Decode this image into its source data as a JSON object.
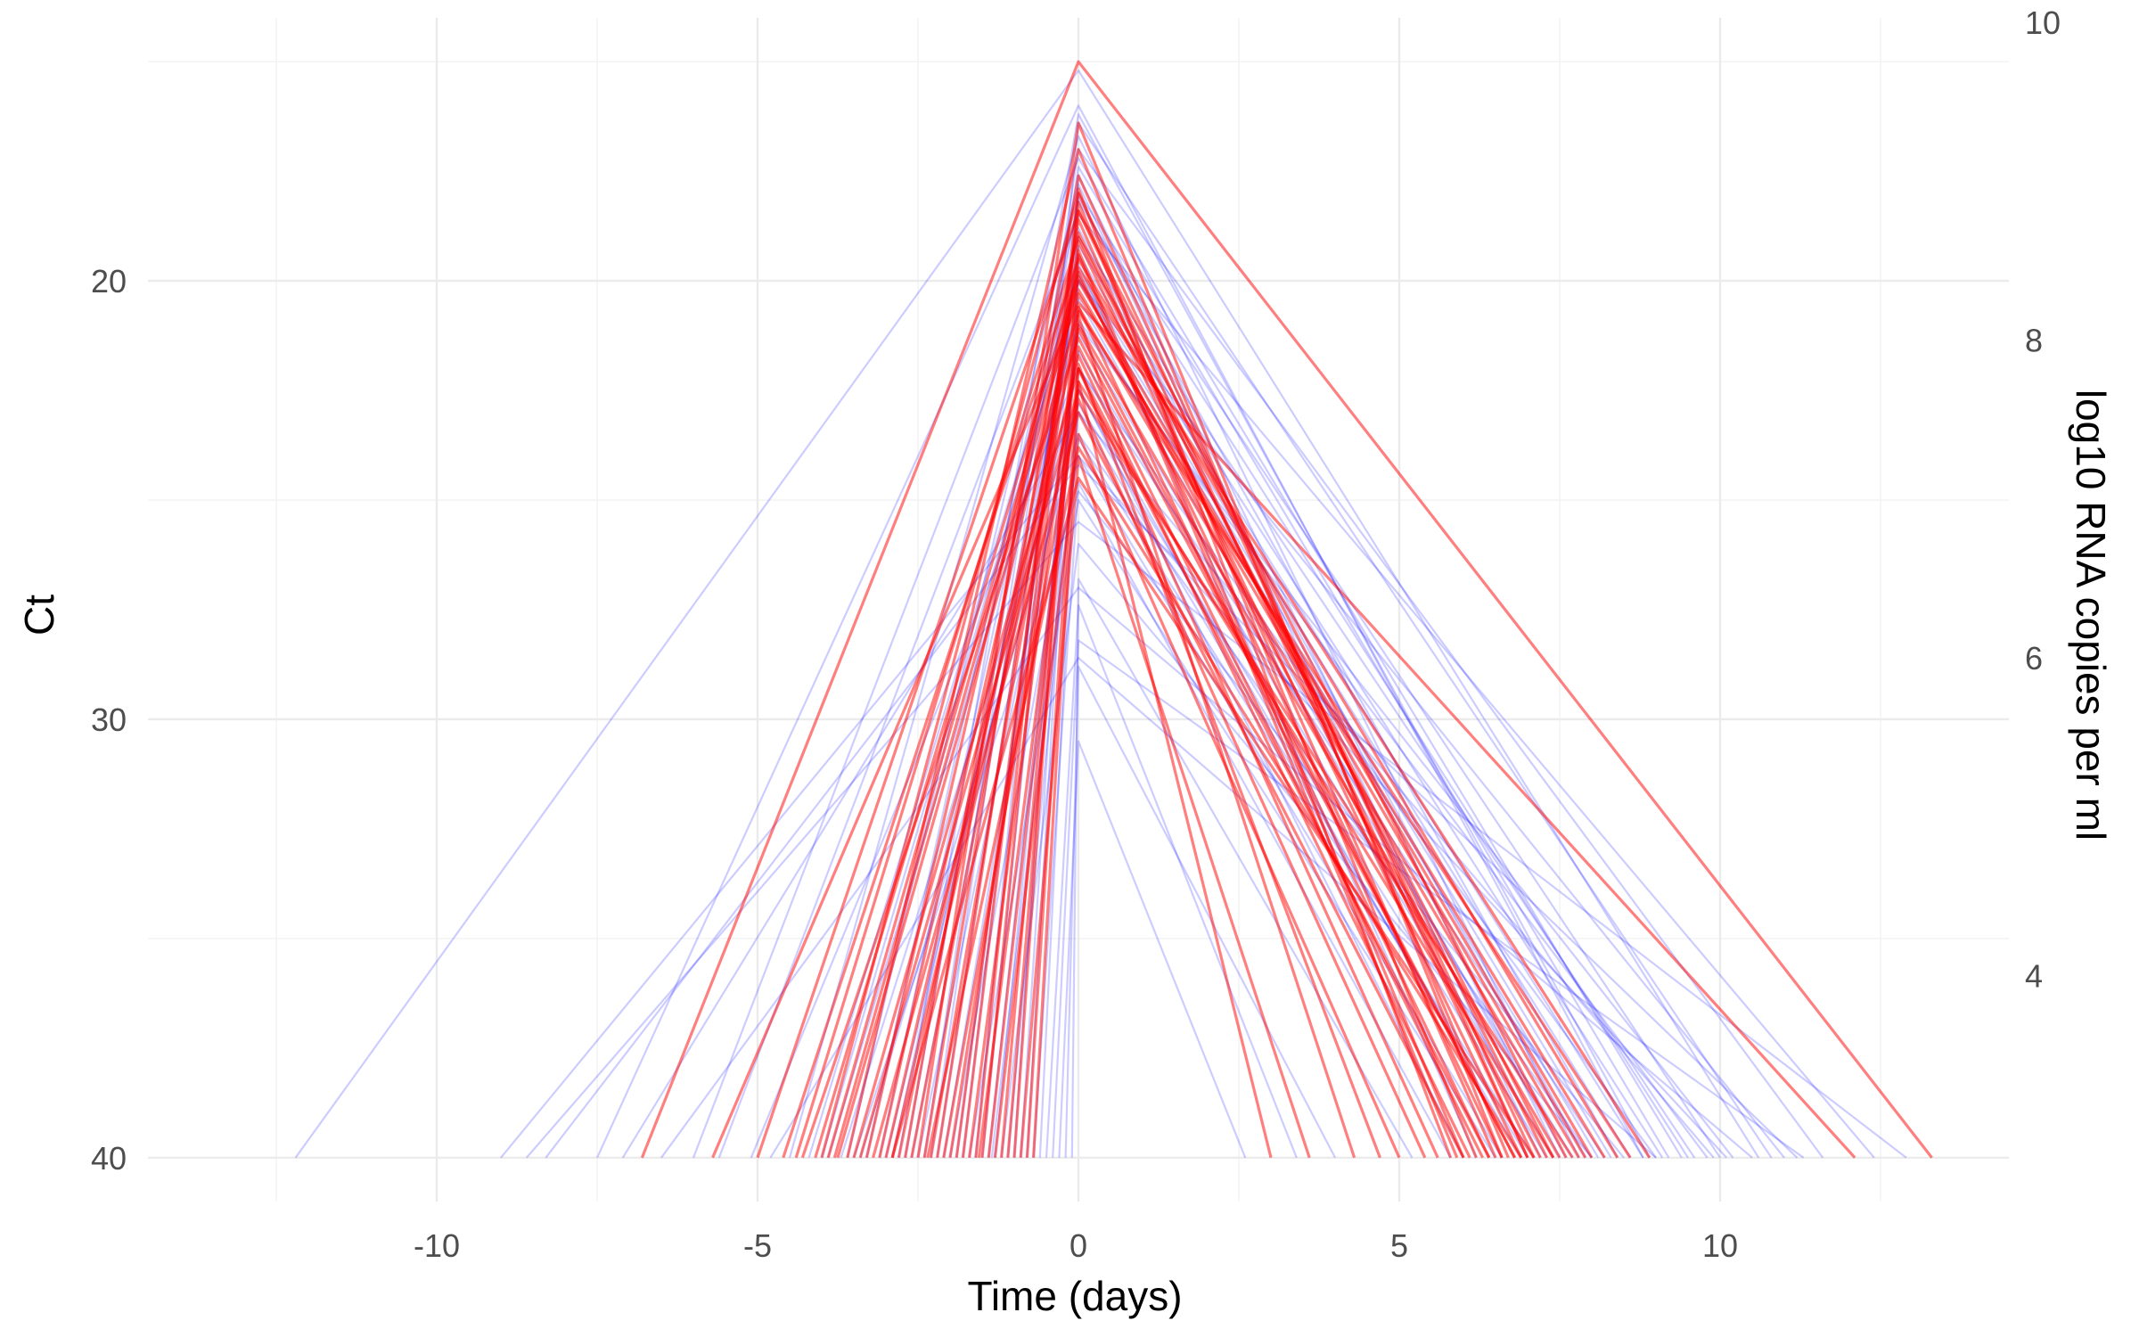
{
  "chart_data": {
    "type": "line",
    "title": "",
    "xlabel": "Time (days)",
    "ylabel": "Ct",
    "y2label": "log10 RNA copies per ml",
    "xlim": [
      -14.5,
      14.5
    ],
    "ylim": [
      14,
      41
    ],
    "y_reversed": true,
    "x_ticks": [
      -10,
      -5,
      0,
      5,
      10
    ],
    "x_tick_labels": [
      "-10",
      "-5",
      "0",
      "5",
      "10"
    ],
    "y_ticks": [
      20,
      30,
      40
    ],
    "y_tick_labels": [
      "20",
      "30",
      "40"
    ],
    "y2_ticks": [
      {
        "label": "10",
        "ct": 14.1
      },
      {
        "label": "8",
        "ct": 21.35
      },
      {
        "label": "6",
        "ct": 28.6
      },
      {
        "label": "4",
        "ct": 35.85
      }
    ],
    "grid": true,
    "legend": "none",
    "series_colors": {
      "blue": "#0000ff",
      "red": "#ff0000"
    },
    "series": [
      {
        "name": "",
        "color": "#0000ff",
        "opacity": 0.2,
        "lines": [
          [
            -12.2,
            15.2,
            10.6
          ],
          [
            -9.0,
            24.0,
            10.1
          ],
          [
            -8.6,
            25.5,
            12.9
          ],
          [
            -8.3,
            24.2,
            11.2
          ],
          [
            -7.5,
            16.0,
            8.8
          ],
          [
            -7.1,
            23.0,
            9.9
          ],
          [
            -6.5,
            27.0,
            10.5
          ],
          [
            -6.0,
            17.2,
            9.4
          ],
          [
            -5.6,
            18.5,
            12.4
          ],
          [
            -5.1,
            22.0,
            8.2
          ],
          [
            -4.8,
            28.6,
            9.0
          ],
          [
            -4.5,
            16.7,
            7.8
          ],
          [
            -4.2,
            19.8,
            8.6
          ],
          [
            -3.9,
            21.0,
            10.2
          ],
          [
            -3.6,
            17.8,
            7.2
          ],
          [
            -3.4,
            23.5,
            8.0
          ],
          [
            -3.1,
            19.0,
            9.6
          ],
          [
            -2.9,
            20.4,
            7.6
          ],
          [
            -2.7,
            18.1,
            8.4
          ],
          [
            -2.5,
            22.5,
            6.9
          ],
          [
            -2.3,
            17.4,
            9.2
          ],
          [
            -2.1,
            21.6,
            7.4
          ],
          [
            -1.9,
            19.4,
            8.8
          ],
          [
            -1.7,
            25.0,
            6.5
          ],
          [
            -1.5,
            18.8,
            7.9
          ],
          [
            -1.3,
            20.9,
            9.8
          ],
          [
            -1.1,
            23.0,
            7.0
          ],
          [
            -0.9,
            19.9,
            8.3
          ],
          [
            -0.7,
            24.6,
            5.8
          ],
          [
            -0.5,
            27.4,
            3.4
          ],
          [
            -0.3,
            30.5,
            2.6
          ],
          [
            -0.2,
            28.8,
            4.0
          ],
          [
            -1.2,
            26.0,
            8.0
          ],
          [
            -2.0,
            24.0,
            6.6
          ],
          [
            -3.0,
            22.0,
            9.0
          ],
          [
            -4.0,
            20.0,
            11.0
          ],
          [
            -1.6,
            16.4,
            10.8
          ],
          [
            -2.4,
            17.0,
            11.6
          ],
          [
            -3.3,
            18.2,
            9.5
          ],
          [
            -0.8,
            19.6,
            6.2
          ],
          [
            -1.4,
            21.2,
            7.7
          ],
          [
            -2.6,
            20.0,
            8.1
          ],
          [
            -3.7,
            22.8,
            7.3
          ],
          [
            -0.4,
            28.2,
            11.3
          ],
          [
            -1.8,
            18.0,
            10.0
          ],
          [
            -2.8,
            16.2,
            8.9
          ],
          [
            -0.6,
            22.4,
            6.0
          ],
          [
            -1.0,
            17.6,
            7.5
          ],
          [
            -2.2,
            19.2,
            9.1
          ],
          [
            -3.5,
            24.8,
            8.5
          ],
          [
            -0.1,
            26.8,
            5.2
          ],
          [
            -1.35,
            23.6,
            7.1
          ]
        ]
      },
      {
        "name": "",
        "color": "#ff0000",
        "opacity": 0.5,
        "lines": [
          [
            -6.8,
            15.0,
            13.3
          ],
          [
            -5.7,
            20.5,
            12.1
          ],
          [
            -5.0,
            18.4,
            7.6
          ],
          [
            -4.6,
            19.5,
            8.4
          ],
          [
            -4.3,
            21.3,
            6.8
          ],
          [
            -4.0,
            18.0,
            7.1
          ],
          [
            -3.8,
            20.2,
            7.9
          ],
          [
            -3.5,
            22.0,
            6.4
          ],
          [
            -3.3,
            18.9,
            7.3
          ],
          [
            -3.1,
            19.7,
            8.9
          ],
          [
            -2.9,
            21.7,
            6.1
          ],
          [
            -2.7,
            17.6,
            7.0
          ],
          [
            -2.5,
            16.4,
            6.6
          ],
          [
            -2.3,
            20.6,
            7.8
          ],
          [
            -2.1,
            22.7,
            5.4
          ],
          [
            -1.9,
            19.1,
            6.9
          ],
          [
            -1.7,
            21.0,
            7.5
          ],
          [
            -1.5,
            18.2,
            6.2
          ],
          [
            -1.3,
            23.5,
            5.0
          ],
          [
            -1.1,
            20.8,
            4.3
          ],
          [
            -0.9,
            24.0,
            3.6
          ],
          [
            -0.7,
            22.3,
            3.0
          ],
          [
            -3.6,
            17.0,
            6.7
          ],
          [
            -2.8,
            19.9,
            7.2
          ],
          [
            -2.0,
            21.5,
            6.3
          ],
          [
            -1.6,
            17.9,
            5.8
          ],
          [
            -3.9,
            20.0,
            8.0
          ],
          [
            -2.4,
            18.6,
            6.5
          ],
          [
            -1.4,
            22.0,
            5.6
          ],
          [
            -3.2,
            23.0,
            6.0
          ],
          [
            -4.4,
            19.0,
            7.4
          ],
          [
            -2.6,
            20.3,
            8.2
          ],
          [
            -1.8,
            18.4,
            7.0
          ],
          [
            -3.0,
            21.1,
            6.8
          ],
          [
            -2.2,
            19.4,
            5.9
          ],
          [
            -1.2,
            20.6,
            6.4
          ],
          [
            -0.8,
            21.9,
            4.7
          ],
          [
            -3.4,
            22.5,
            7.7
          ],
          [
            -4.1,
            19.8,
            6.6
          ],
          [
            -2.9,
            24.5,
            7.1
          ],
          [
            -1.0,
            19.3,
            6.0
          ],
          [
            -2.35,
            23.8,
            6.9
          ],
          [
            -3.75,
            20.7,
            8.6
          ],
          [
            -1.55,
            22.3,
            7.4
          ]
        ]
      }
    ]
  }
}
